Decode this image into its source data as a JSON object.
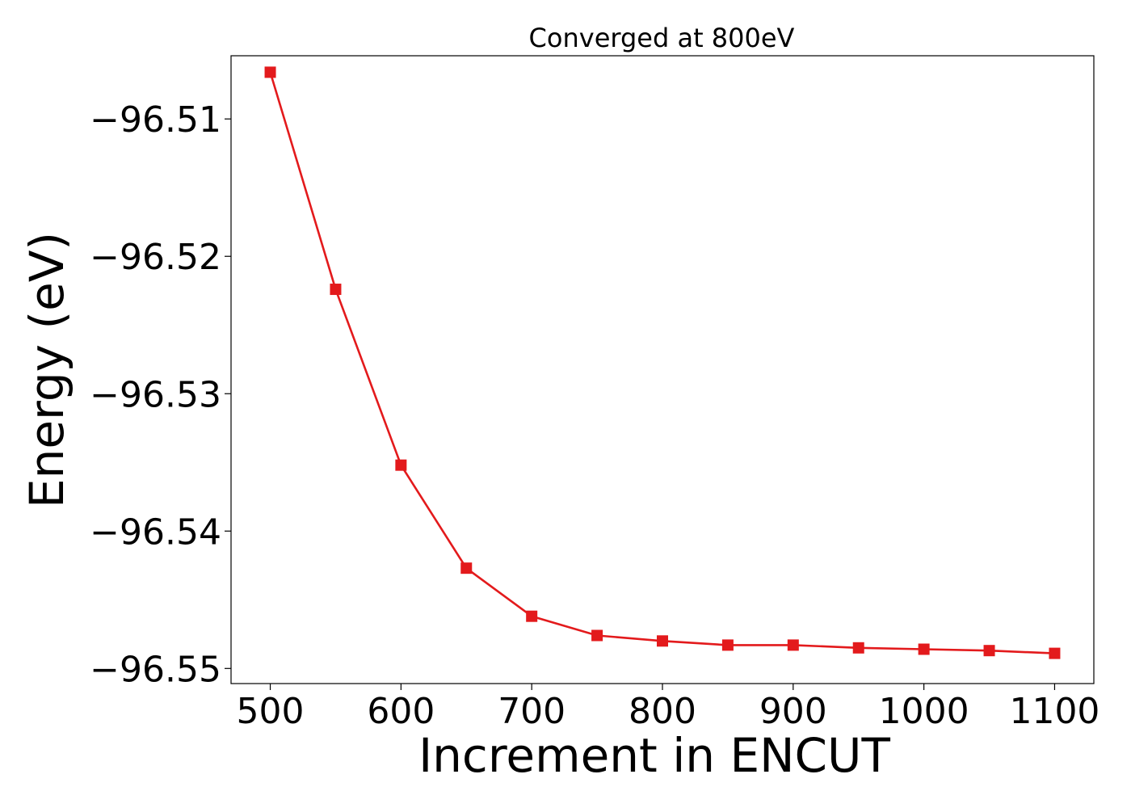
{
  "chart_data": {
    "type": "line",
    "title": "Converged at 800eV",
    "xlabel": "Increment in ENCUT",
    "ylabel": "Energy (eV)",
    "xlim": [
      470,
      1130
    ],
    "ylim": [
      -96.5511,
      -96.5054
    ],
    "xticks": [
      500,
      600,
      700,
      800,
      900,
      1000,
      1100
    ],
    "xtick_labels": [
      "500",
      "600",
      "700",
      "800",
      "900",
      "1000",
      "1100"
    ],
    "yticks": [
      -96.51,
      -96.52,
      -96.53,
      -96.54,
      -96.55
    ],
    "ytick_labels": [
      "−96.51",
      "−96.52",
      "−96.53",
      "−96.54",
      "−96.55"
    ],
    "grid": false,
    "series": [
      {
        "marker": "square",
        "color": "#e31a1c",
        "x": [
          500,
          550,
          600,
          650,
          700,
          750,
          800,
          850,
          900,
          950,
          1000,
          1050,
          1100
        ],
        "y": [
          -96.5066,
          -96.5224,
          -96.5352,
          -96.5427,
          -96.5462,
          -96.5476,
          -96.548,
          -96.5483,
          -96.5483,
          -96.5485,
          -96.5486,
          -96.5487,
          -96.5489
        ]
      }
    ]
  }
}
